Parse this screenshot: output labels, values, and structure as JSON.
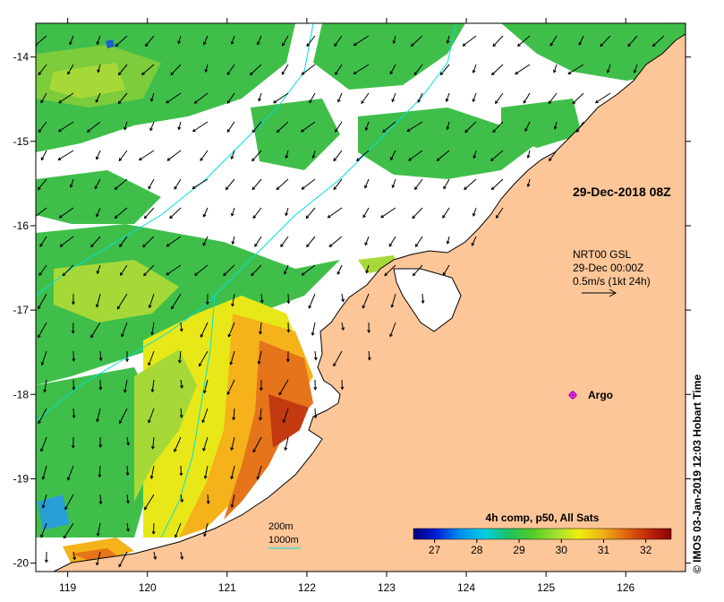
{
  "map": {
    "x_ticks": [
      "119",
      "120",
      "121",
      "122",
      "123",
      "124",
      "125",
      "126"
    ],
    "y_ticks": [
      "-14",
      "-15",
      "-16",
      "-17",
      "-18",
      "-19",
      "-20"
    ],
    "lon_range": [
      118.6,
      126.75
    ],
    "lat_range": [
      -20.1,
      -13.6
    ],
    "land_color": "#fdc699",
    "no_data_color": "#ffffff"
  },
  "annotations": {
    "timestamp": "29-Dec-2018 08Z",
    "current_source": "NRT00 GSL",
    "current_time": "29-Dec 00:00Z",
    "current_scale": "0.5m/s (1kt 24h)",
    "argo_label": "Argo",
    "contour_200": "200m",
    "contour_1000": "1000m"
  },
  "colorbar": {
    "title": "4h comp, p50, All Sats",
    "ticks": [
      "27",
      "28",
      "29",
      "30",
      "31",
      "32"
    ],
    "min": 26.5,
    "max": 32.6,
    "colors": [
      "#00007a",
      "#0020d8",
      "#0090f0",
      "#00d0e0",
      "#20c060",
      "#50cc28",
      "#a8e030",
      "#f0f010",
      "#f0b418",
      "#e06a10",
      "#c02808",
      "#8a0000"
    ]
  },
  "credit": "© IMOS 03-Jan-2019 12:03 Hobart Time"
}
